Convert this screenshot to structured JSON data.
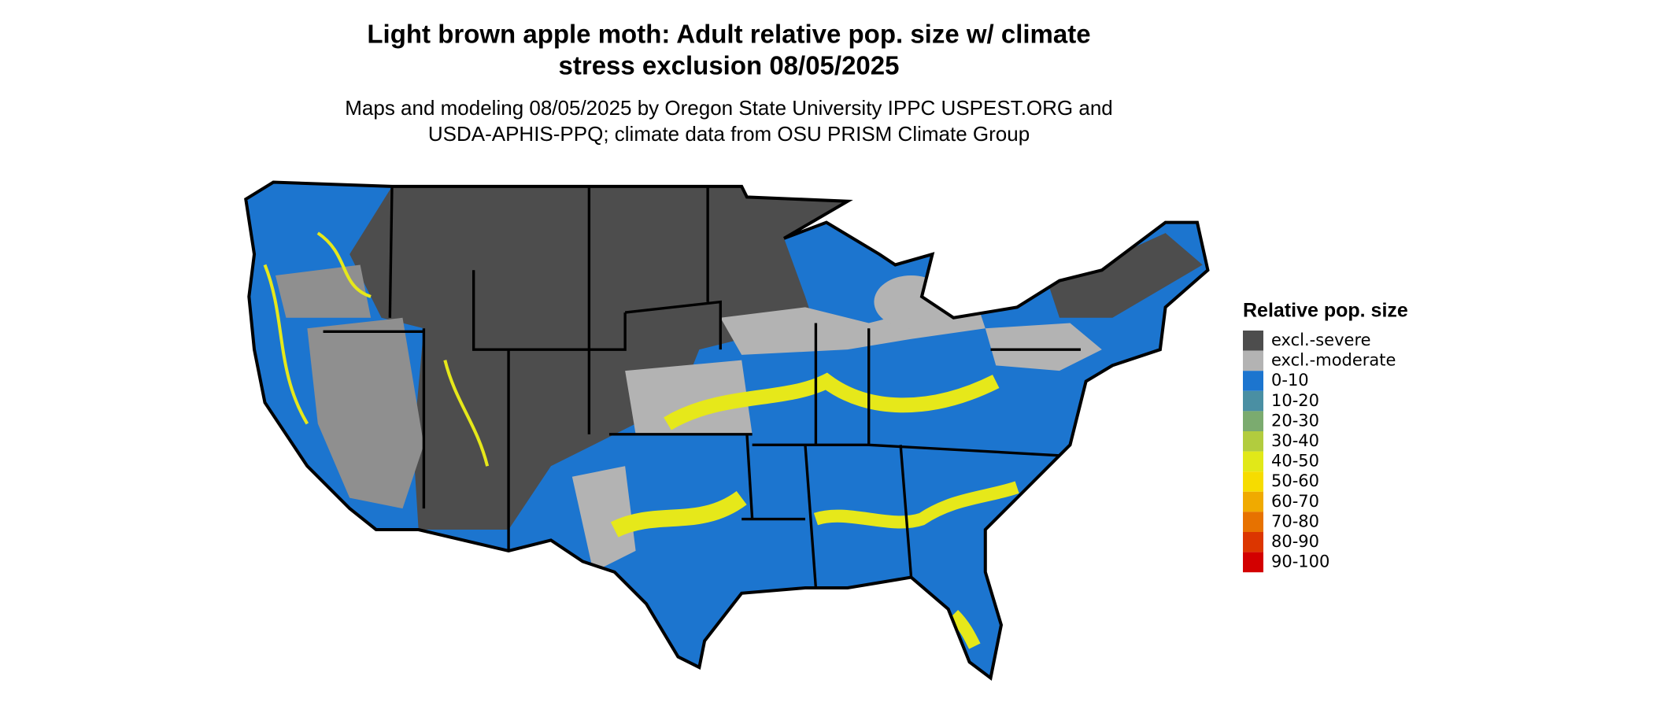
{
  "title": [
    "Light brown apple moth: Adult relative pop. size w/ climate",
    "stress exclusion 08/05/2025"
  ],
  "subtitle": [
    "Maps and modeling 08/05/2025 by Oregon State University IPPC USPEST.ORG and",
    "USDA-APHIS-PPQ; climate data from OSU PRISM Climate Group"
  ],
  "legend": {
    "title": "Relative pop. size",
    "items": [
      {
        "label": "excl.-severe",
        "color": "#4d4d4d"
      },
      {
        "label": "excl.-moderate",
        "color": "#b3b3b3"
      },
      {
        "label": "0-10",
        "color": "#1c75cf"
      },
      {
        "label": "10-20",
        "color": "#4a8fa3"
      },
      {
        "label": "20-30",
        "color": "#7bab6f"
      },
      {
        "label": "30-40",
        "color": "#b2cc3e"
      },
      {
        "label": "40-50",
        "color": "#e1e818"
      },
      {
        "label": "50-60",
        "color": "#f6dc00"
      },
      {
        "label": "60-70",
        "color": "#f0aa00"
      },
      {
        "label": "70-80",
        "color": "#e77200"
      },
      {
        "label": "80-90",
        "color": "#dc3600"
      },
      {
        "label": "90-100",
        "color": "#d30000"
      }
    ]
  }
}
